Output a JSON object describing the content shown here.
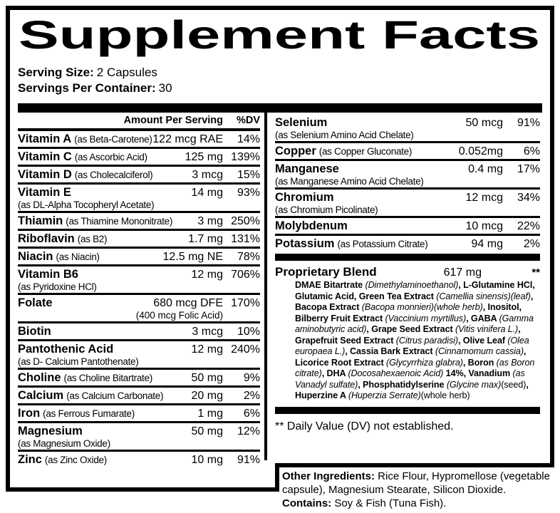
{
  "title": "Supplement Facts",
  "serving": {
    "size_label": "Serving Size:",
    "size_value": "2 Capsules",
    "container_label": "Servings Per Container:",
    "container_value": "30"
  },
  "table": {
    "header": {
      "amount": "Amount Per Serving",
      "dv": "%DV"
    },
    "left_rows": [
      {
        "name": "Vitamin A",
        "form": "(as Beta-Carotene)",
        "amount": "122 mcg RAE",
        "dv": "14%"
      },
      {
        "name": "Vitamin C",
        "form": "(as Ascorbic Acid)",
        "amount": "125 mg",
        "dv": "139%"
      },
      {
        "name": "Vitamin D",
        "form": "(as Cholecalciferol)",
        "amount": "3 mcg",
        "dv": "15%"
      },
      {
        "name": "Vitamin E",
        "form_below": "(as DL-Alpha Tocopheryl Acetate)",
        "amount": "14 mg",
        "dv": "93%"
      },
      {
        "name": "Thiamin",
        "form": "(as Thiamine Mononitrate)",
        "amount": "3 mg",
        "dv": "250%"
      },
      {
        "name": "Riboflavin",
        "form": "(as B2)",
        "amount": "1.7 mg",
        "dv": "131%"
      },
      {
        "name": "Niacin",
        "form": "(as Niacin)",
        "amount": "12.5 mg NE",
        "dv": "78%"
      },
      {
        "name": "Vitamin B6",
        "form_below": "(as Pyridoxine HCl)",
        "amount": "12 mg",
        "dv": "706%"
      },
      {
        "name": "Folate",
        "amount": "680 mcg DFE",
        "amount_note": "(400 mcg Folic Acid)",
        "dv": "170%"
      },
      {
        "name": "Biotin",
        "amount": "3 mcg",
        "dv": "10%"
      },
      {
        "name": "Pantothenic Acid",
        "form_below": "(as D- Calcium Pantothenate)",
        "amount": "12 mg",
        "dv": "240%"
      },
      {
        "name": "Choline",
        "form": "(as Choline Bitartrate)",
        "amount": "50 mg",
        "dv": "9%"
      },
      {
        "name": "Calcium",
        "form": "(as Calcium Carbonate)",
        "amount": "20 mg",
        "dv": "2%"
      },
      {
        "name": "Iron",
        "form": "(as Ferrous Fumarate)",
        "amount": "1 mg",
        "dv": "6%"
      },
      {
        "name": "Magnesium",
        "form_below": "(as Magnesium Oxide)",
        "amount": "50 mg",
        "dv": "12%"
      },
      {
        "name": "Zinc",
        "form": "(as Zinc Oxide)",
        "amount": "10 mg",
        "dv": "91%"
      }
    ],
    "right_rows": [
      {
        "name": "Selenium",
        "form_below": "(as Selenium Amino Acid Chelate)",
        "amount": "50 mcg",
        "dv": "91%"
      },
      {
        "name": "Copper",
        "form": "(as Copper Gluconate)",
        "amount": "0.052mg",
        "dv": "6%"
      },
      {
        "name": "Manganese",
        "form_below": "(as Manganese Amino Acid Chelate)",
        "amount": "0.4 mg",
        "dv": "17%"
      },
      {
        "name": "Chromium",
        "form_below": "(as Chromium Picolinate)",
        "amount": "12 mcg",
        "dv": "34%"
      },
      {
        "name": "Molybdenum",
        "amount": "10 mcg",
        "dv": "22%"
      },
      {
        "name": "Potassium",
        "form": "(as Potassium Citrate)",
        "amount": "94 mg",
        "dv": "2%"
      }
    ]
  },
  "blend": {
    "name": "Proprietary Blend",
    "amount": "617 mg",
    "dv": "**",
    "segments": [
      {
        "t": "DMAE Bitartrate ",
        "s": "b"
      },
      {
        "t": "(Dimethylaminoethanol)",
        "s": "i"
      },
      {
        "t": ", L-Glutamine HCl, Glutamic Acid, Green Tea Extract ",
        "s": "b"
      },
      {
        "t": "(Camellia sinensis)(leaf)",
        "s": "i"
      },
      {
        "t": ", Bacopa Extract ",
        "s": "b"
      },
      {
        "t": "(Bacopa monnieri)(whole herb)",
        "s": "i"
      },
      {
        "t": ", Inositol, Bilberry Fruit Extract ",
        "s": "b"
      },
      {
        "t": "(Vaccinium myrtillus)",
        "s": "i"
      },
      {
        "t": ", GABA ",
        "s": "b"
      },
      {
        "t": "(Gamma aminobutyric acid)",
        "s": "i"
      },
      {
        "t": ", Grape Seed Extract ",
        "s": "b"
      },
      {
        "t": "(Vitis vinifera L.)",
        "s": "i"
      },
      {
        "t": ", Grapefruit Seed Extract ",
        "s": "b"
      },
      {
        "t": "(Citrus paradisi)",
        "s": "i"
      },
      {
        "t": ", Olive Leaf ",
        "s": "b"
      },
      {
        "t": "(Olea europaea L.)",
        "s": "i"
      },
      {
        "t": ", Cassia Bark Extract ",
        "s": "b"
      },
      {
        "t": "(Cinnamomum cassia)",
        "s": "i"
      },
      {
        "t": ", Licorice Root Extract ",
        "s": "b"
      },
      {
        "t": "(Glycyrrhiza glabra)",
        "s": "i"
      },
      {
        "t": ", Boron ",
        "s": "b"
      },
      {
        "t": "(as Boron citrate)",
        "s": "i"
      },
      {
        "t": ", DHA ",
        "s": "b"
      },
      {
        "t": "(Docosahexaenoic Acid)",
        "s": "i"
      },
      {
        "t": " 14%, Vanadium ",
        "s": "b"
      },
      {
        "t": "(as Vanadyl sulfate)",
        "s": "i"
      },
      {
        "t": ", Phosphatidylserine ",
        "s": "b"
      },
      {
        "t": "(Glycine max)",
        "s": "i"
      },
      {
        "t": "(seed)",
        "s": "r"
      },
      {
        "t": ", Huperzine A ",
        "s": "b"
      },
      {
        "t": "(Huperzia Serrate)",
        "s": "i"
      },
      {
        "t": "(whole herb)",
        "s": "r"
      }
    ]
  },
  "footnote": "** Daily Value (DV) not established.",
  "other": {
    "label": "Other Ingredients:",
    "text": " Rice Flour, Hypromellose (vegetable capsule), Magnesium Stearate, Silicon Dioxide.",
    "contains_label": "Contains:",
    "contains_text": " Soy & Fish (Tuna Fish)."
  },
  "colors": {
    "ink": "#000000",
    "paper": "#ffffff"
  }
}
